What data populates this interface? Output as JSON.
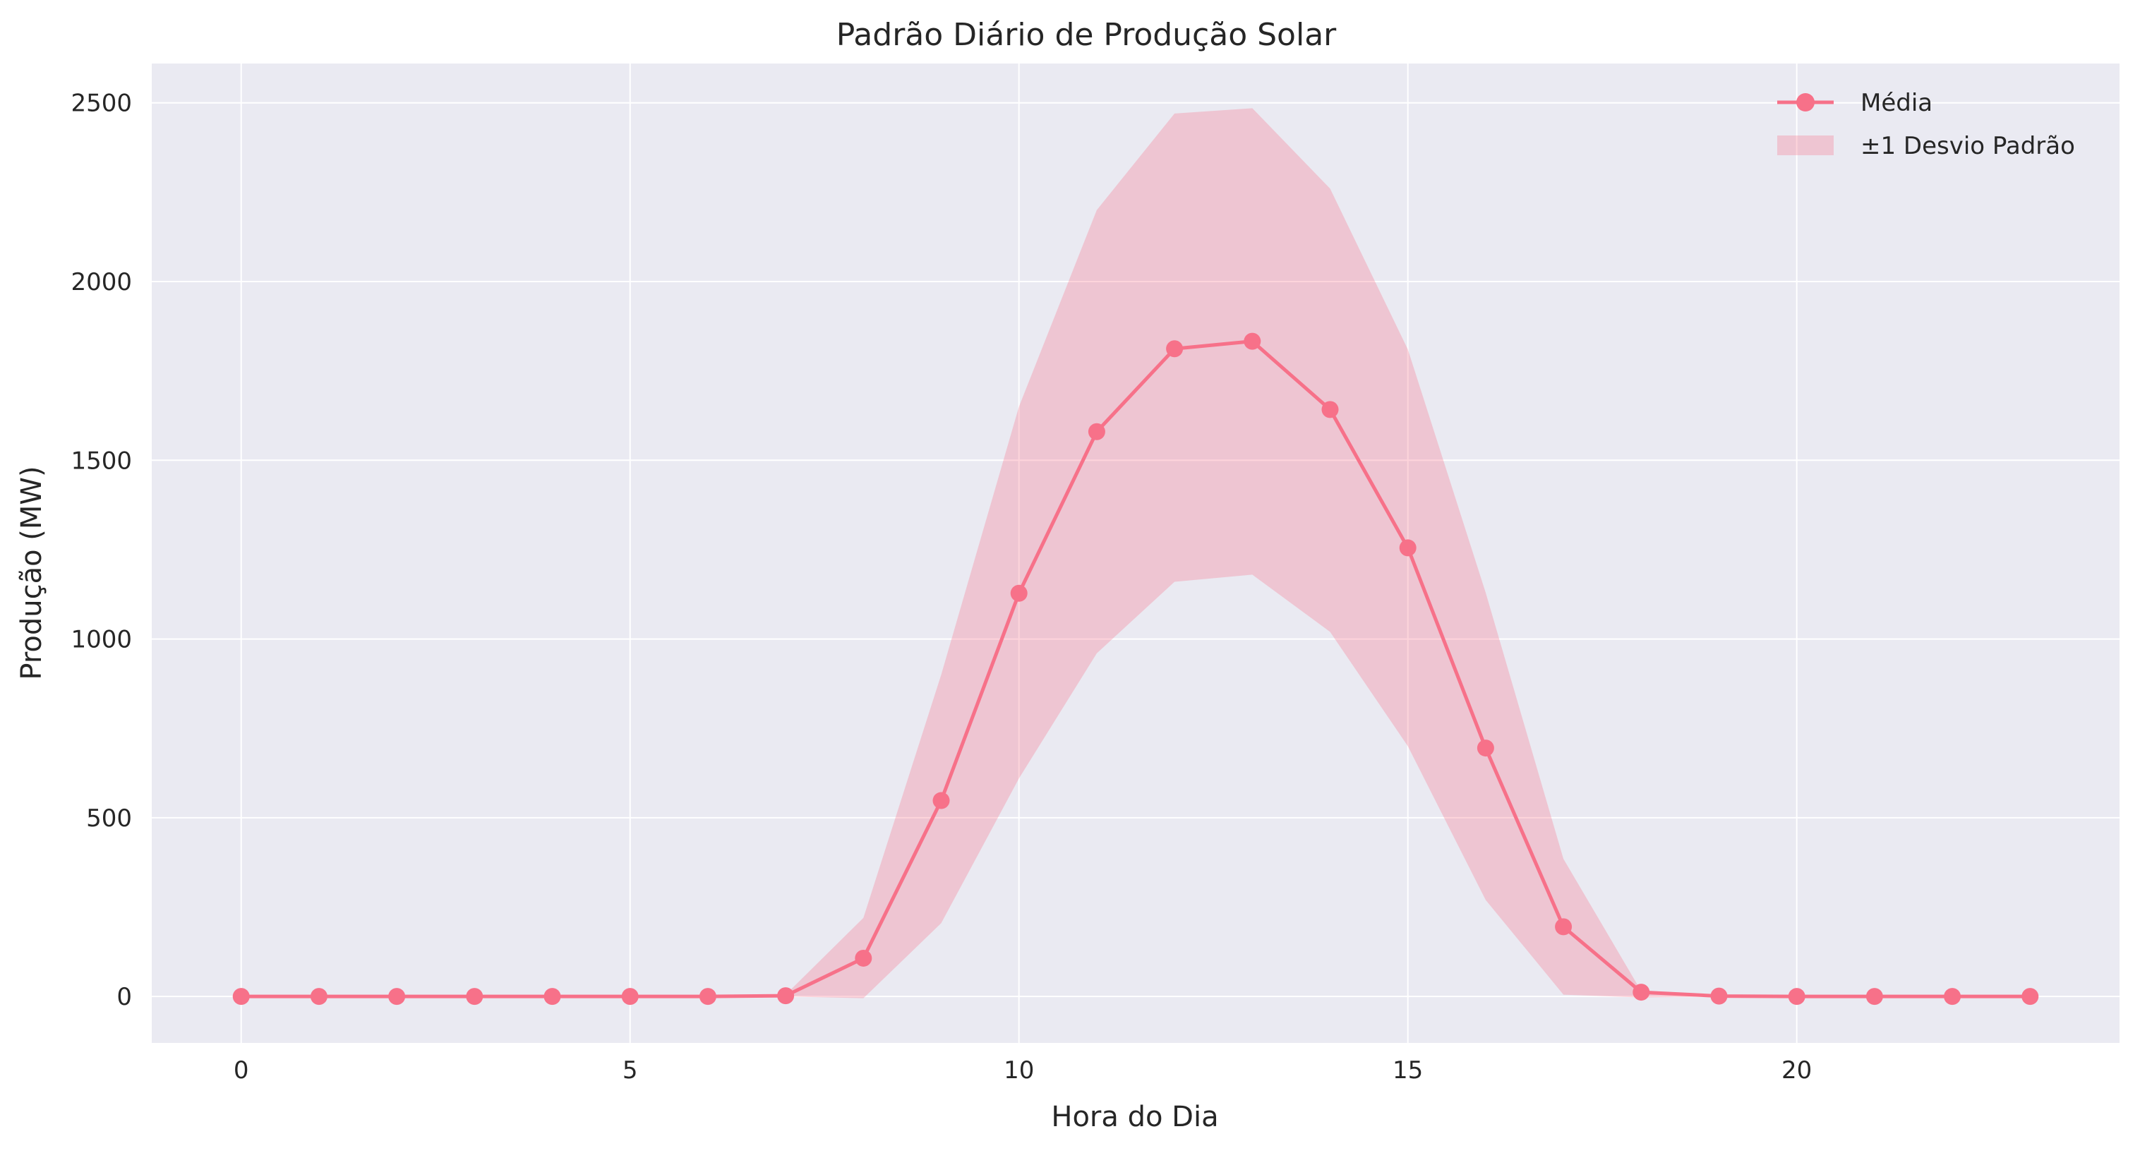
{
  "chart_data": {
    "type": "line",
    "title": "Padrão Diário de Produção Solar",
    "xlabel": "Hora do Dia",
    "ylabel": "Produção (MW)",
    "x": [
      0,
      1,
      2,
      3,
      4,
      5,
      6,
      7,
      8,
      9,
      10,
      11,
      12,
      13,
      14,
      15,
      16,
      17,
      18,
      19,
      20,
      21,
      22,
      23
    ],
    "xlim": [
      -1.15,
      24.15
    ],
    "ylim": [
      -130,
      2610
    ],
    "xticks": [
      0,
      5,
      10,
      15,
      20
    ],
    "yticks": [
      0,
      500,
      1000,
      1500,
      2000,
      2500
    ],
    "grid": true,
    "legend_position": "top-right",
    "series": [
      {
        "name": "Média",
        "kind": "line-markers",
        "color": "#f77189",
        "values": [
          0,
          0,
          0,
          0,
          0,
          0,
          0,
          2,
          107,
          548,
          1128,
          1580,
          1812,
          1833,
          1642,
          1255,
          695,
          195,
          12,
          1,
          0,
          0,
          0,
          0
        ]
      }
    ],
    "band": {
      "name": "±1 Desvio Padrão",
      "color": "#f77189",
      "upper": [
        0,
        0,
        0,
        0,
        0,
        0,
        0,
        5,
        220,
        900,
        1650,
        2200,
        2470,
        2485,
        2260,
        1810,
        1130,
        385,
        15,
        2,
        0,
        0,
        0,
        0
      ],
      "lower": [
        0,
        0,
        0,
        0,
        0,
        0,
        0,
        0,
        -5,
        205,
        610,
        960,
        1160,
        1180,
        1020,
        700,
        270,
        5,
        -3,
        0,
        0,
        0,
        0,
        0
      ]
    }
  }
}
